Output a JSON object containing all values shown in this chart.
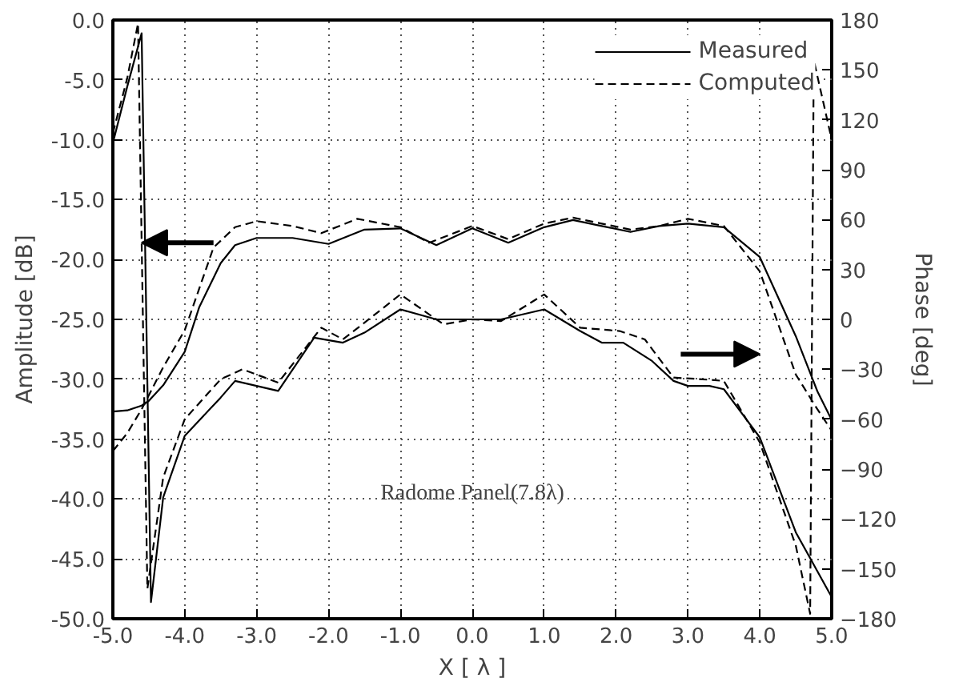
{
  "chart_data": {
    "type": "line",
    "xlabel": "X [ λ ]",
    "ylabel": "Amplitude [dB]",
    "y2label": "Phase [deg]",
    "xlim": [
      -5,
      5
    ],
    "ylim": [
      -50,
      0
    ],
    "y2lim": [
      -180,
      180
    ],
    "xticks": [
      {
        "value": -5,
        "label": "-5.0"
      },
      {
        "value": -4,
        "label": "-4.0"
      },
      {
        "value": -3,
        "label": "-3.0"
      },
      {
        "value": -2,
        "label": "-2.0"
      },
      {
        "value": -1,
        "label": "-1.0"
      },
      {
        "value": 0,
        "label": "0.0"
      },
      {
        "value": 1,
        "label": "1.0"
      },
      {
        "value": 2,
        "label": "2.0"
      },
      {
        "value": 3,
        "label": "3.0"
      },
      {
        "value": 4,
        "label": "4.0"
      },
      {
        "value": 5,
        "label": "5.0"
      }
    ],
    "yticks": [
      {
        "value": 0,
        "label": "0.0"
      },
      {
        "value": -5,
        "label": "-5.0"
      },
      {
        "value": -10,
        "label": "-10.0"
      },
      {
        "value": -15,
        "label": "-15.0"
      },
      {
        "value": -20,
        "label": "-20.0"
      },
      {
        "value": -25,
        "label": "-25.0"
      },
      {
        "value": -30,
        "label": "-30.0"
      },
      {
        "value": -35,
        "label": "-35.0"
      },
      {
        "value": -40,
        "label": "-40.0"
      },
      {
        "value": -45,
        "label": "-45.0"
      },
      {
        "value": -50,
        "label": "-50.0"
      }
    ],
    "y2ticks": [
      180,
      150,
      120,
      90,
      60,
      30,
      0,
      -30,
      -60,
      -90,
      -120,
      -150,
      -180
    ],
    "grid": true,
    "legend": "top right",
    "series": [
      {
        "name": "Measured",
        "color": "#000000",
        "line_style": "solid",
        "x": [
          -5,
          -4.8,
          -4.6,
          -4.5,
          -4.3,
          -4.0,
          -3.8,
          -3.5,
          -3.3,
          -3.0,
          -2.5,
          -2.0,
          -1.5,
          -1.0,
          -0.5,
          0,
          0.5,
          1.0,
          1.4,
          1.8,
          2.2,
          2.6,
          3.0,
          3.5,
          4.0,
          4.5,
          4.8,
          5.0
        ],
        "values": [
          -32.7,
          -32.6,
          -32.2,
          -31.8,
          -30.5,
          -27.7,
          -24,
          -20.3,
          -18.8,
          -18.2,
          -18.2,
          -18.7,
          -17.5,
          -17.4,
          -18.8,
          -17.4,
          -18.6,
          -17.3,
          -16.7,
          -17.2,
          -17.7,
          -17.2,
          -17.0,
          -17.3,
          -19.8,
          -26.4,
          -31,
          -33.4
        ]
      },
      {
        "name": "Computed",
        "color": "#000000",
        "line_style": "dashed",
        "x": [
          -5,
          -4.8,
          -4.6,
          -4.3,
          -4.0,
          -3.6,
          -3.3,
          -3.0,
          -2.5,
          -2.1,
          -1.6,
          -1.0,
          -0.6,
          0,
          0.5,
          1.0,
          1.4,
          1.8,
          2.2,
          2.6,
          3.0,
          3.5,
          4.0,
          4.5,
          4.8,
          5.0
        ],
        "values": [
          -36,
          -34.5,
          -32.5,
          -29,
          -25.9,
          -19,
          -17.3,
          -16.8,
          -17.2,
          -17.8,
          -16.6,
          -17.3,
          -18.6,
          -17.2,
          -18.3,
          -17.0,
          -16.5,
          -17.0,
          -17.5,
          -17.2,
          -16.6,
          -17.2,
          -21,
          -29.6,
          -32.5,
          -34.3
        ]
      },
      {
        "color": "#000000",
        "line_style": "solid",
        "axis": "y2",
        "x": [
          -5,
          -4.8,
          -4.6,
          -4.47,
          -4.3,
          -4.0,
          -3.5,
          -3.3,
          -3.0,
          -2.7,
          -2.2,
          -1.8,
          -1.5,
          -1.0,
          -0.5,
          0,
          0.4,
          1.0,
          1.5,
          1.8,
          2.1,
          2.5,
          2.8,
          3.0,
          3.3,
          3.5,
          4.0,
          4.5,
          5.0
        ],
        "values": [
          106,
          140,
          172,
          -170,
          -107,
          -70,
          -47,
          -37,
          -40,
          -43,
          -11,
          -14,
          -8,
          6,
          0,
          0,
          0,
          6,
          -7,
          -14,
          -14,
          -25,
          -37,
          -40,
          -40,
          -42,
          -71,
          -128,
          -167
        ]
      },
      {
        "color": "#000000",
        "line_style": "dashed",
        "axis": "y2",
        "x": [
          -5,
          -4.8,
          -4.65,
          -4.52,
          -4.3,
          -4.0,
          -3.5,
          -3.2,
          -2.7,
          -2.1,
          -1.8,
          -1.5,
          -1.0,
          -0.4,
          0,
          0.4,
          1.0,
          1.5,
          2.05,
          2.4,
          2.8,
          3.2,
          3.5,
          4.0,
          4.5,
          4.7,
          4.75,
          5.0
        ],
        "values": [
          112,
          145,
          178,
          -162,
          -95,
          -60,
          -36,
          -30,
          -38,
          -5,
          -12,
          -2,
          15,
          -3,
          0,
          -1,
          15,
          -5,
          -7,
          -12,
          -35,
          -36,
          -37,
          -74,
          -136,
          -177,
          156,
          108
        ]
      }
    ],
    "annotations": [
      "Radome Panel(7.8λ)"
    ]
  }
}
